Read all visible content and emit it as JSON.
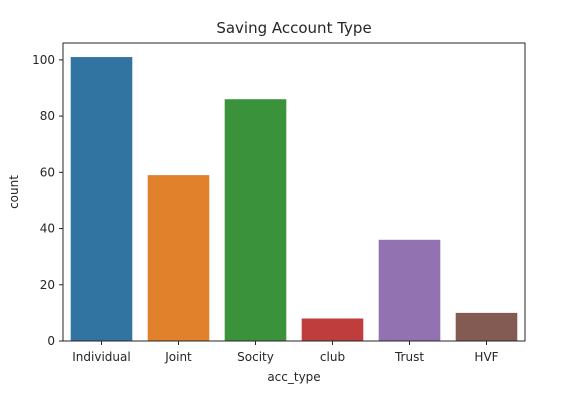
{
  "chart_data": {
    "type": "bar",
    "title": "Saving Account Type",
    "xlabel": "acc_type",
    "ylabel": "count",
    "categories": [
      "Individual",
      "Joint",
      "Socity",
      "club",
      "Trust",
      "HVF"
    ],
    "values": [
      101,
      59,
      86,
      8,
      36,
      10
    ],
    "colors": [
      "#3274a1",
      "#e1812c",
      "#3a923a",
      "#c03d3e",
      "#9372b2",
      "#845b53"
    ],
    "ylim": [
      0,
      106
    ],
    "yticks": [
      0,
      20,
      40,
      60,
      80,
      100
    ],
    "grid": false,
    "legend": "none"
  }
}
